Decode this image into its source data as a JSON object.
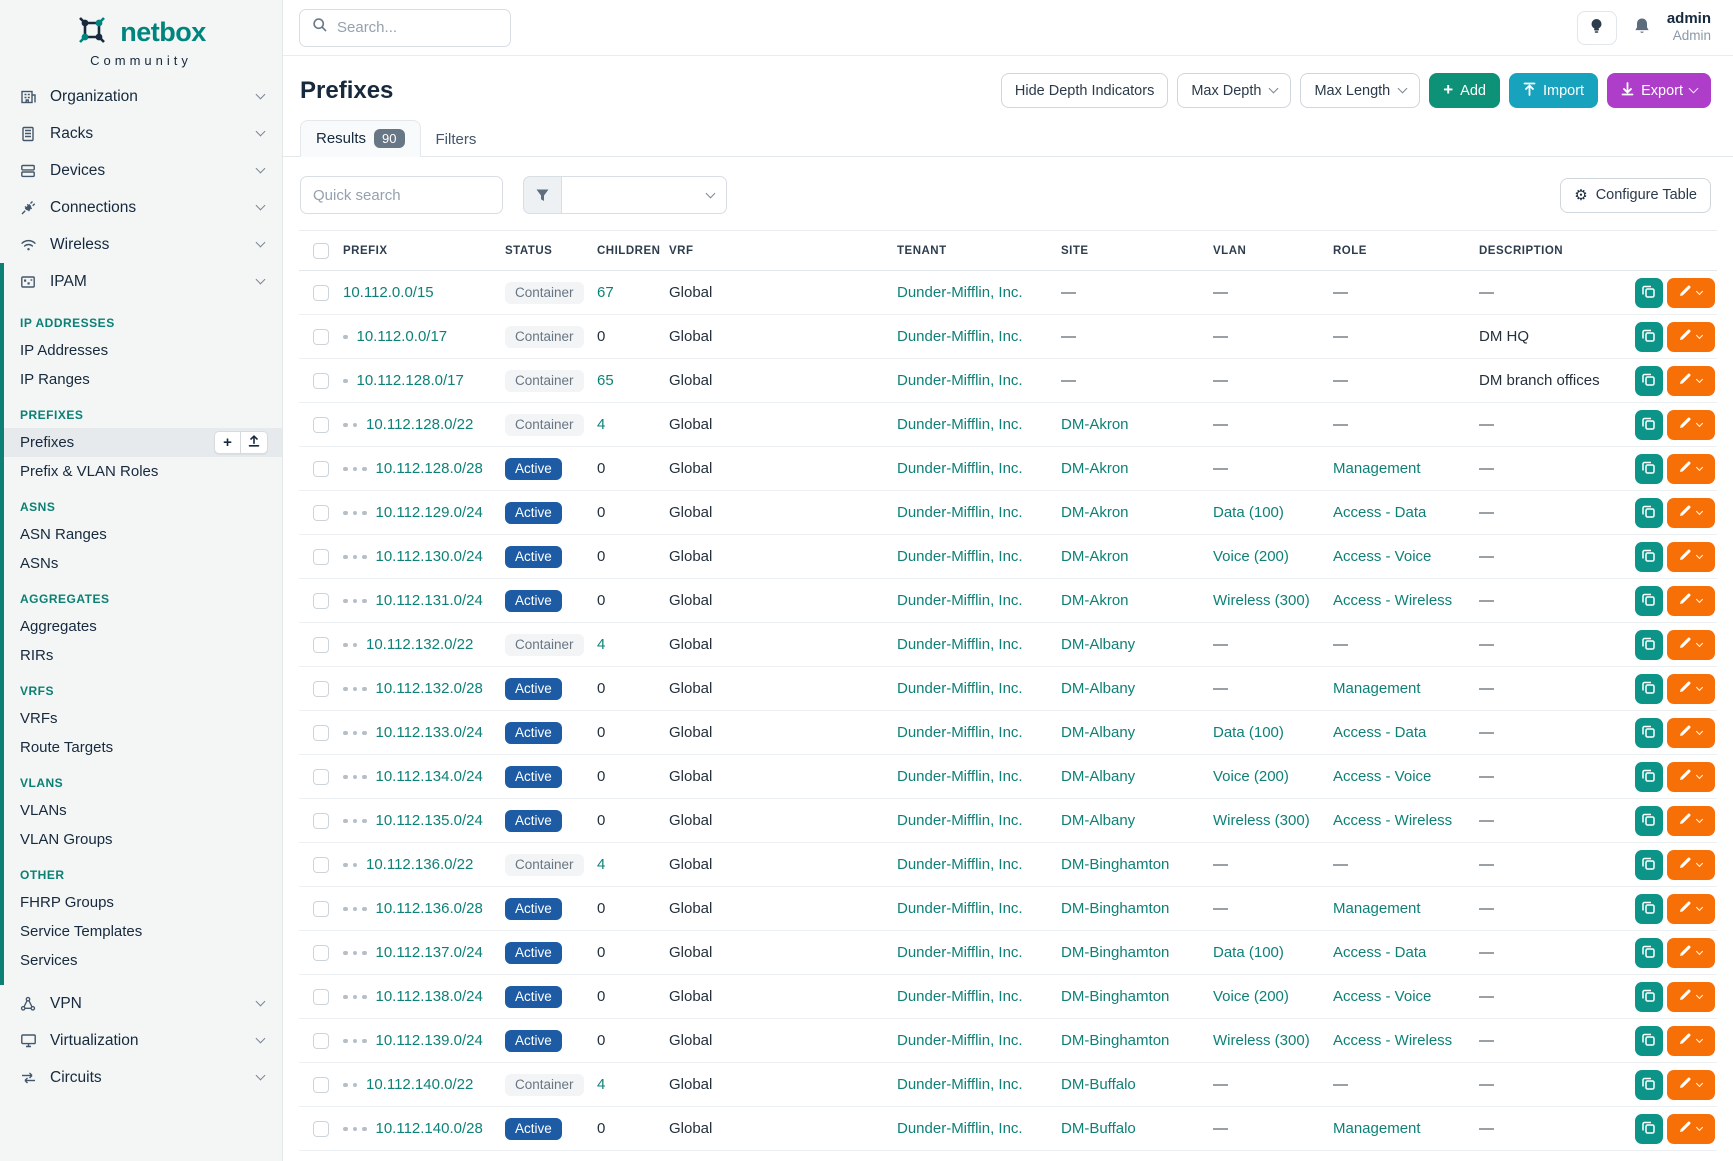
{
  "brand": {
    "name": "netbox",
    "subtitle": "Community"
  },
  "topbar": {
    "search_placeholder": "Search...",
    "user_name": "admin",
    "user_role": "Admin"
  },
  "sidebar": {
    "top_items": [
      {
        "label": "Organization",
        "icon": "building-icon"
      },
      {
        "label": "Racks",
        "icon": "rack-icon"
      },
      {
        "label": "Devices",
        "icon": "server-icon"
      },
      {
        "label": "Connections",
        "icon": "plug-icon"
      },
      {
        "label": "Wireless",
        "icon": "wifi-icon"
      }
    ],
    "ipam": {
      "label": "IPAM",
      "icon": "ipam-icon",
      "sections": [
        {
          "heading": "IP ADDRESSES",
          "items": [
            {
              "label": "IP Addresses"
            },
            {
              "label": "IP Ranges"
            }
          ]
        },
        {
          "heading": "PREFIXES",
          "items": [
            {
              "label": "Prefixes",
              "active": true,
              "buttons": [
                "plus-icon",
                "upload-icon"
              ]
            },
            {
              "label": "Prefix & VLAN Roles"
            }
          ]
        },
        {
          "heading": "ASNS",
          "items": [
            {
              "label": "ASN Ranges"
            },
            {
              "label": "ASNs"
            }
          ]
        },
        {
          "heading": "AGGREGATES",
          "items": [
            {
              "label": "Aggregates"
            },
            {
              "label": "RIRs"
            }
          ]
        },
        {
          "heading": "VRFS",
          "items": [
            {
              "label": "VRFs"
            },
            {
              "label": "Route Targets"
            }
          ]
        },
        {
          "heading": "VLANS",
          "items": [
            {
              "label": "VLANs"
            },
            {
              "label": "VLAN Groups"
            }
          ]
        },
        {
          "heading": "OTHER",
          "items": [
            {
              "label": "FHRP Groups"
            },
            {
              "label": "Service Templates"
            },
            {
              "label": "Services"
            }
          ]
        }
      ]
    },
    "bottom_items": [
      {
        "label": "VPN",
        "icon": "vpn-icon"
      },
      {
        "label": "Virtualization",
        "icon": "monitor-icon"
      },
      {
        "label": "Circuits",
        "icon": "circuits-icon"
      }
    ]
  },
  "page": {
    "title": "Prefixes",
    "header_buttons": {
      "hide_depth": "Hide Depth Indicators",
      "max_depth": "Max Depth",
      "max_length": "Max Length",
      "add": "Add",
      "import": "Import",
      "export": "Export"
    },
    "tabs": [
      {
        "label": "Results",
        "badge": "90",
        "active": true
      },
      {
        "label": "Filters",
        "active": false
      }
    ],
    "toolbar": {
      "quick_search_placeholder": "Quick search",
      "configure_table": "Configure Table"
    }
  },
  "table": {
    "columns": [
      "PREFIX",
      "STATUS",
      "CHILDREN",
      "VRF",
      "TENANT",
      "SITE",
      "VLAN",
      "ROLE",
      "DESCRIPTION"
    ],
    "rows": [
      {
        "depth": 0,
        "prefix": "10.112.0.0/15",
        "status": "Container",
        "children": "67",
        "vrf": "Global",
        "tenant": "Dunder-Mifflin, Inc.",
        "site": "—",
        "vlan": "—",
        "role": "—",
        "description": "—"
      },
      {
        "depth": 1,
        "prefix": "10.112.0.0/17",
        "status": "Container",
        "children": "0",
        "vrf": "Global",
        "tenant": "Dunder-Mifflin, Inc.",
        "site": "—",
        "vlan": "—",
        "role": "—",
        "description": "DM HQ"
      },
      {
        "depth": 1,
        "prefix": "10.112.128.0/17",
        "status": "Container",
        "children": "65",
        "vrf": "Global",
        "tenant": "Dunder-Mifflin, Inc.",
        "site": "—",
        "vlan": "—",
        "role": "—",
        "description": "DM branch offices"
      },
      {
        "depth": 2,
        "prefix": "10.112.128.0/22",
        "status": "Container",
        "children": "4",
        "vrf": "Global",
        "tenant": "Dunder-Mifflin, Inc.",
        "site": "DM-Akron",
        "vlan": "—",
        "role": "—",
        "description": "—"
      },
      {
        "depth": 3,
        "prefix": "10.112.128.0/28",
        "status": "Active",
        "children": "0",
        "vrf": "Global",
        "tenant": "Dunder-Mifflin, Inc.",
        "site": "DM-Akron",
        "vlan": "—",
        "role": "Management",
        "description": "—"
      },
      {
        "depth": 3,
        "prefix": "10.112.129.0/24",
        "status": "Active",
        "children": "0",
        "vrf": "Global",
        "tenant": "Dunder-Mifflin, Inc.",
        "site": "DM-Akron",
        "vlan": "Data (100)",
        "role": "Access - Data",
        "description": "—"
      },
      {
        "depth": 3,
        "prefix": "10.112.130.0/24",
        "status": "Active",
        "children": "0",
        "vrf": "Global",
        "tenant": "Dunder-Mifflin, Inc.",
        "site": "DM-Akron",
        "vlan": "Voice (200)",
        "role": "Access - Voice",
        "description": "—"
      },
      {
        "depth": 3,
        "prefix": "10.112.131.0/24",
        "status": "Active",
        "children": "0",
        "vrf": "Global",
        "tenant": "Dunder-Mifflin, Inc.",
        "site": "DM-Akron",
        "vlan": "Wireless (300)",
        "role": "Access - Wireless",
        "description": "—"
      },
      {
        "depth": 2,
        "prefix": "10.112.132.0/22",
        "status": "Container",
        "children": "4",
        "vrf": "Global",
        "tenant": "Dunder-Mifflin, Inc.",
        "site": "DM-Albany",
        "vlan": "—",
        "role": "—",
        "description": "—"
      },
      {
        "depth": 3,
        "prefix": "10.112.132.0/28",
        "status": "Active",
        "children": "0",
        "vrf": "Global",
        "tenant": "Dunder-Mifflin, Inc.",
        "site": "DM-Albany",
        "vlan": "—",
        "role": "Management",
        "description": "—"
      },
      {
        "depth": 3,
        "prefix": "10.112.133.0/24",
        "status": "Active",
        "children": "0",
        "vrf": "Global",
        "tenant": "Dunder-Mifflin, Inc.",
        "site": "DM-Albany",
        "vlan": "Data (100)",
        "role": "Access - Data",
        "description": "—"
      },
      {
        "depth": 3,
        "prefix": "10.112.134.0/24",
        "status": "Active",
        "children": "0",
        "vrf": "Global",
        "tenant": "Dunder-Mifflin, Inc.",
        "site": "DM-Albany",
        "vlan": "Voice (200)",
        "role": "Access - Voice",
        "description": "—"
      },
      {
        "depth": 3,
        "prefix": "10.112.135.0/24",
        "status": "Active",
        "children": "0",
        "vrf": "Global",
        "tenant": "Dunder-Mifflin, Inc.",
        "site": "DM-Albany",
        "vlan": "Wireless (300)",
        "role": "Access - Wireless",
        "description": "—"
      },
      {
        "depth": 2,
        "prefix": "10.112.136.0/22",
        "status": "Container",
        "children": "4",
        "vrf": "Global",
        "tenant": "Dunder-Mifflin, Inc.",
        "site": "DM-Binghamton",
        "vlan": "—",
        "role": "—",
        "description": "—"
      },
      {
        "depth": 3,
        "prefix": "10.112.136.0/28",
        "status": "Active",
        "children": "0",
        "vrf": "Global",
        "tenant": "Dunder-Mifflin, Inc.",
        "site": "DM-Binghamton",
        "vlan": "—",
        "role": "Management",
        "description": "—"
      },
      {
        "depth": 3,
        "prefix": "10.112.137.0/24",
        "status": "Active",
        "children": "0",
        "vrf": "Global",
        "tenant": "Dunder-Mifflin, Inc.",
        "site": "DM-Binghamton",
        "vlan": "Data (100)",
        "role": "Access - Data",
        "description": "—"
      },
      {
        "depth": 3,
        "prefix": "10.112.138.0/24",
        "status": "Active",
        "children": "0",
        "vrf": "Global",
        "tenant": "Dunder-Mifflin, Inc.",
        "site": "DM-Binghamton",
        "vlan": "Voice (200)",
        "role": "Access - Voice",
        "description": "—"
      },
      {
        "depth": 3,
        "prefix": "10.112.139.0/24",
        "status": "Active",
        "children": "0",
        "vrf": "Global",
        "tenant": "Dunder-Mifflin, Inc.",
        "site": "DM-Binghamton",
        "vlan": "Wireless (300)",
        "role": "Access - Wireless",
        "description": "—"
      },
      {
        "depth": 2,
        "prefix": "10.112.140.0/22",
        "status": "Container",
        "children": "4",
        "vrf": "Global",
        "tenant": "Dunder-Mifflin, Inc.",
        "site": "DM-Buffalo",
        "vlan": "—",
        "role": "—",
        "description": "—"
      },
      {
        "depth": 3,
        "prefix": "10.112.140.0/28",
        "status": "Active",
        "children": "0",
        "vrf": "Global",
        "tenant": "Dunder-Mifflin, Inc.",
        "site": "DM-Buffalo",
        "vlan": "—",
        "role": "Management",
        "description": "—"
      }
    ]
  },
  "colors": {
    "brand_teal": "#00857e",
    "link_teal": "#0e8177",
    "sidebar_accent": "#0c8074",
    "add_green": "#0d9177",
    "import_cyan": "#17a2bd",
    "export_purple": "#ae3ec9",
    "edit_orange": "#f76f07",
    "clone_teal": "#0d9488",
    "status_active_bg": "#1d5ba4",
    "status_container_bg": "#f2f4f6"
  }
}
